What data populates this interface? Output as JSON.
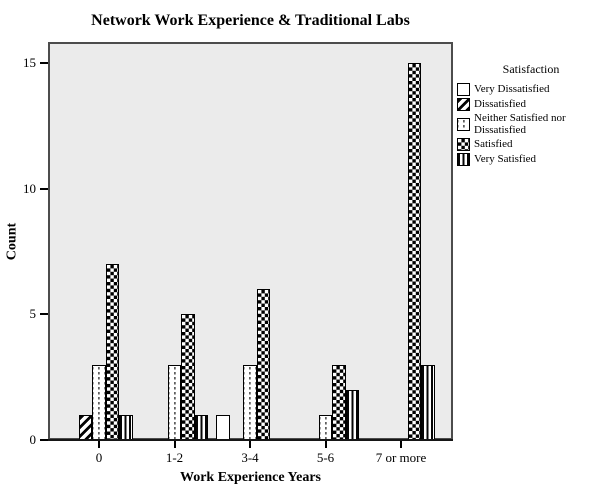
{
  "chart_data": {
    "type": "bar",
    "title": "Network Work Experience & Traditional Labs",
    "xlabel": "Work Experience Years",
    "ylabel": "Count",
    "categories": [
      "0",
      "1-2",
      "3-4",
      "5-6",
      "7 or more"
    ],
    "series": [
      {
        "name": "Very Dissatisfied",
        "pattern": "solid-white",
        "values": [
          0,
          0,
          1,
          0,
          0
        ]
      },
      {
        "name": "Dissatisfied",
        "pattern": "diagonal-stripes",
        "values": [
          1,
          0,
          0,
          0,
          0
        ]
      },
      {
        "name": "Neither Satisfied nor Dissatisfied",
        "pattern": "dot-grid",
        "values": [
          3,
          3,
          3,
          1,
          0
        ]
      },
      {
        "name": "Satisfied",
        "pattern": "checkerboard",
        "values": [
          7,
          5,
          6,
          3,
          15
        ]
      },
      {
        "name": "Very Satisfied",
        "pattern": "vertical-stripes",
        "values": [
          1,
          1,
          0,
          2,
          3
        ]
      }
    ],
    "yticks": [
      0,
      5,
      10,
      15
    ],
    "ylim": [
      0,
      15.8
    ],
    "legend_title": "Satisfaction",
    "legend_position": "right",
    "grid": false
  },
  "colors": {
    "plot_bg": "#ebebeb",
    "plot_border": "#4c4c4c",
    "bar_border": "#000000",
    "text": "#000000",
    "page_bg": "#ffffff"
  }
}
